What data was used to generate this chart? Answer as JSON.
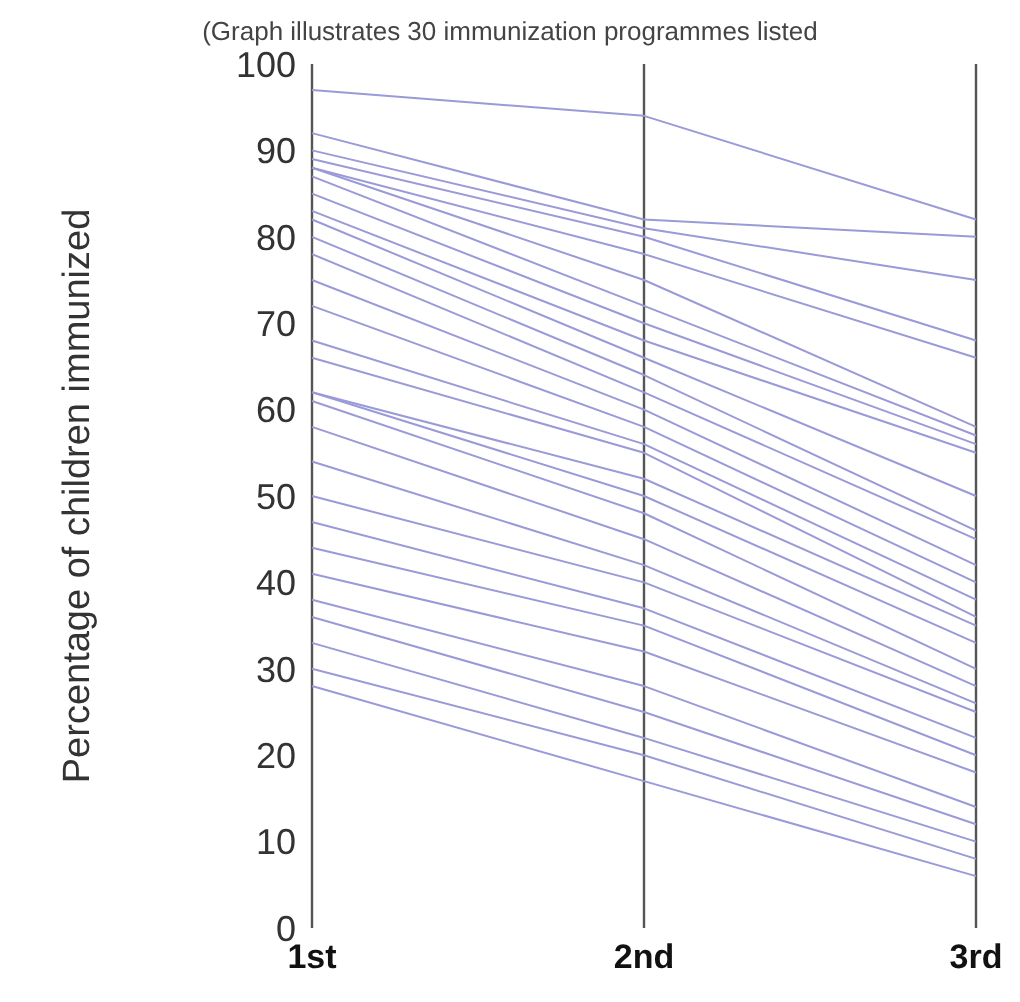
{
  "chart_data": {
    "type": "line",
    "title": "(Graph illustrates 30 immunization programmes listed",
    "ylabel": "Percentage of children immunized",
    "categories": [
      "1st",
      "2nd",
      "3rd"
    ],
    "ylim": [
      0,
      100
    ],
    "yticks": [
      0,
      10,
      20,
      30,
      40,
      50,
      60,
      70,
      80,
      90,
      100
    ],
    "grid": "x",
    "legend": false,
    "marker": "none",
    "line_style": "solid",
    "series": [
      {
        "color": "#9a9ad8",
        "values": [
          97,
          94,
          82
        ]
      },
      {
        "color": "#9a9ad8",
        "values": [
          92,
          82,
          80
        ]
      },
      {
        "color": "#9a9ad8",
        "values": [
          90,
          81,
          75
        ]
      },
      {
        "color": "#9a9ad8",
        "values": [
          89,
          80,
          68
        ]
      },
      {
        "color": "#9a9ad8",
        "values": [
          88,
          78,
          66
        ]
      },
      {
        "color": "#9a9ad8",
        "values": [
          88,
          75,
          58
        ]
      },
      {
        "color": "#9a9ad8",
        "values": [
          87,
          72,
          57
        ]
      },
      {
        "color": "#9a9ad8",
        "values": [
          85,
          70,
          56
        ]
      },
      {
        "color": "#9a9ad8",
        "values": [
          83,
          68,
          55
        ]
      },
      {
        "color": "#9a9ad8",
        "values": [
          82,
          66,
          50
        ]
      },
      {
        "color": "#9a9ad8",
        "values": [
          80,
          64,
          46
        ]
      },
      {
        "color": "#9a9ad8",
        "values": [
          78,
          62,
          45
        ]
      },
      {
        "color": "#9a9ad8",
        "values": [
          75,
          60,
          42
        ]
      },
      {
        "color": "#9a9ad8",
        "values": [
          72,
          58,
          40
        ]
      },
      {
        "color": "#9a9ad8",
        "values": [
          68,
          56,
          38
        ]
      },
      {
        "color": "#9a9ad8",
        "values": [
          66,
          55,
          36
        ]
      },
      {
        "color": "#9a9ad8",
        "values": [
          62,
          52,
          35
        ]
      },
      {
        "color": "#9a9ad8",
        "values": [
          62,
          50,
          33
        ]
      },
      {
        "color": "#9a9ad8",
        "values": [
          61,
          48,
          30
        ]
      },
      {
        "color": "#9a9ad8",
        "values": [
          58,
          45,
          28
        ]
      },
      {
        "color": "#9a9ad8",
        "values": [
          54,
          42,
          26
        ]
      },
      {
        "color": "#9a9ad8",
        "values": [
          50,
          40,
          25
        ]
      },
      {
        "color": "#9a9ad8",
        "values": [
          47,
          37,
          22
        ]
      },
      {
        "color": "#9a9ad8",
        "values": [
          44,
          35,
          20
        ]
      },
      {
        "color": "#9a9ad8",
        "values": [
          41,
          32,
          18
        ]
      },
      {
        "color": "#9a9ad8",
        "values": [
          38,
          28,
          14
        ]
      },
      {
        "color": "#9a9ad8",
        "values": [
          36,
          25,
          12
        ]
      },
      {
        "color": "#9a9ad8",
        "values": [
          33,
          22,
          10
        ]
      },
      {
        "color": "#9a9ad8",
        "values": [
          30,
          20,
          8
        ]
      },
      {
        "color": "#9a9ad8",
        "values": [
          28,
          17,
          6
        ]
      }
    ]
  }
}
